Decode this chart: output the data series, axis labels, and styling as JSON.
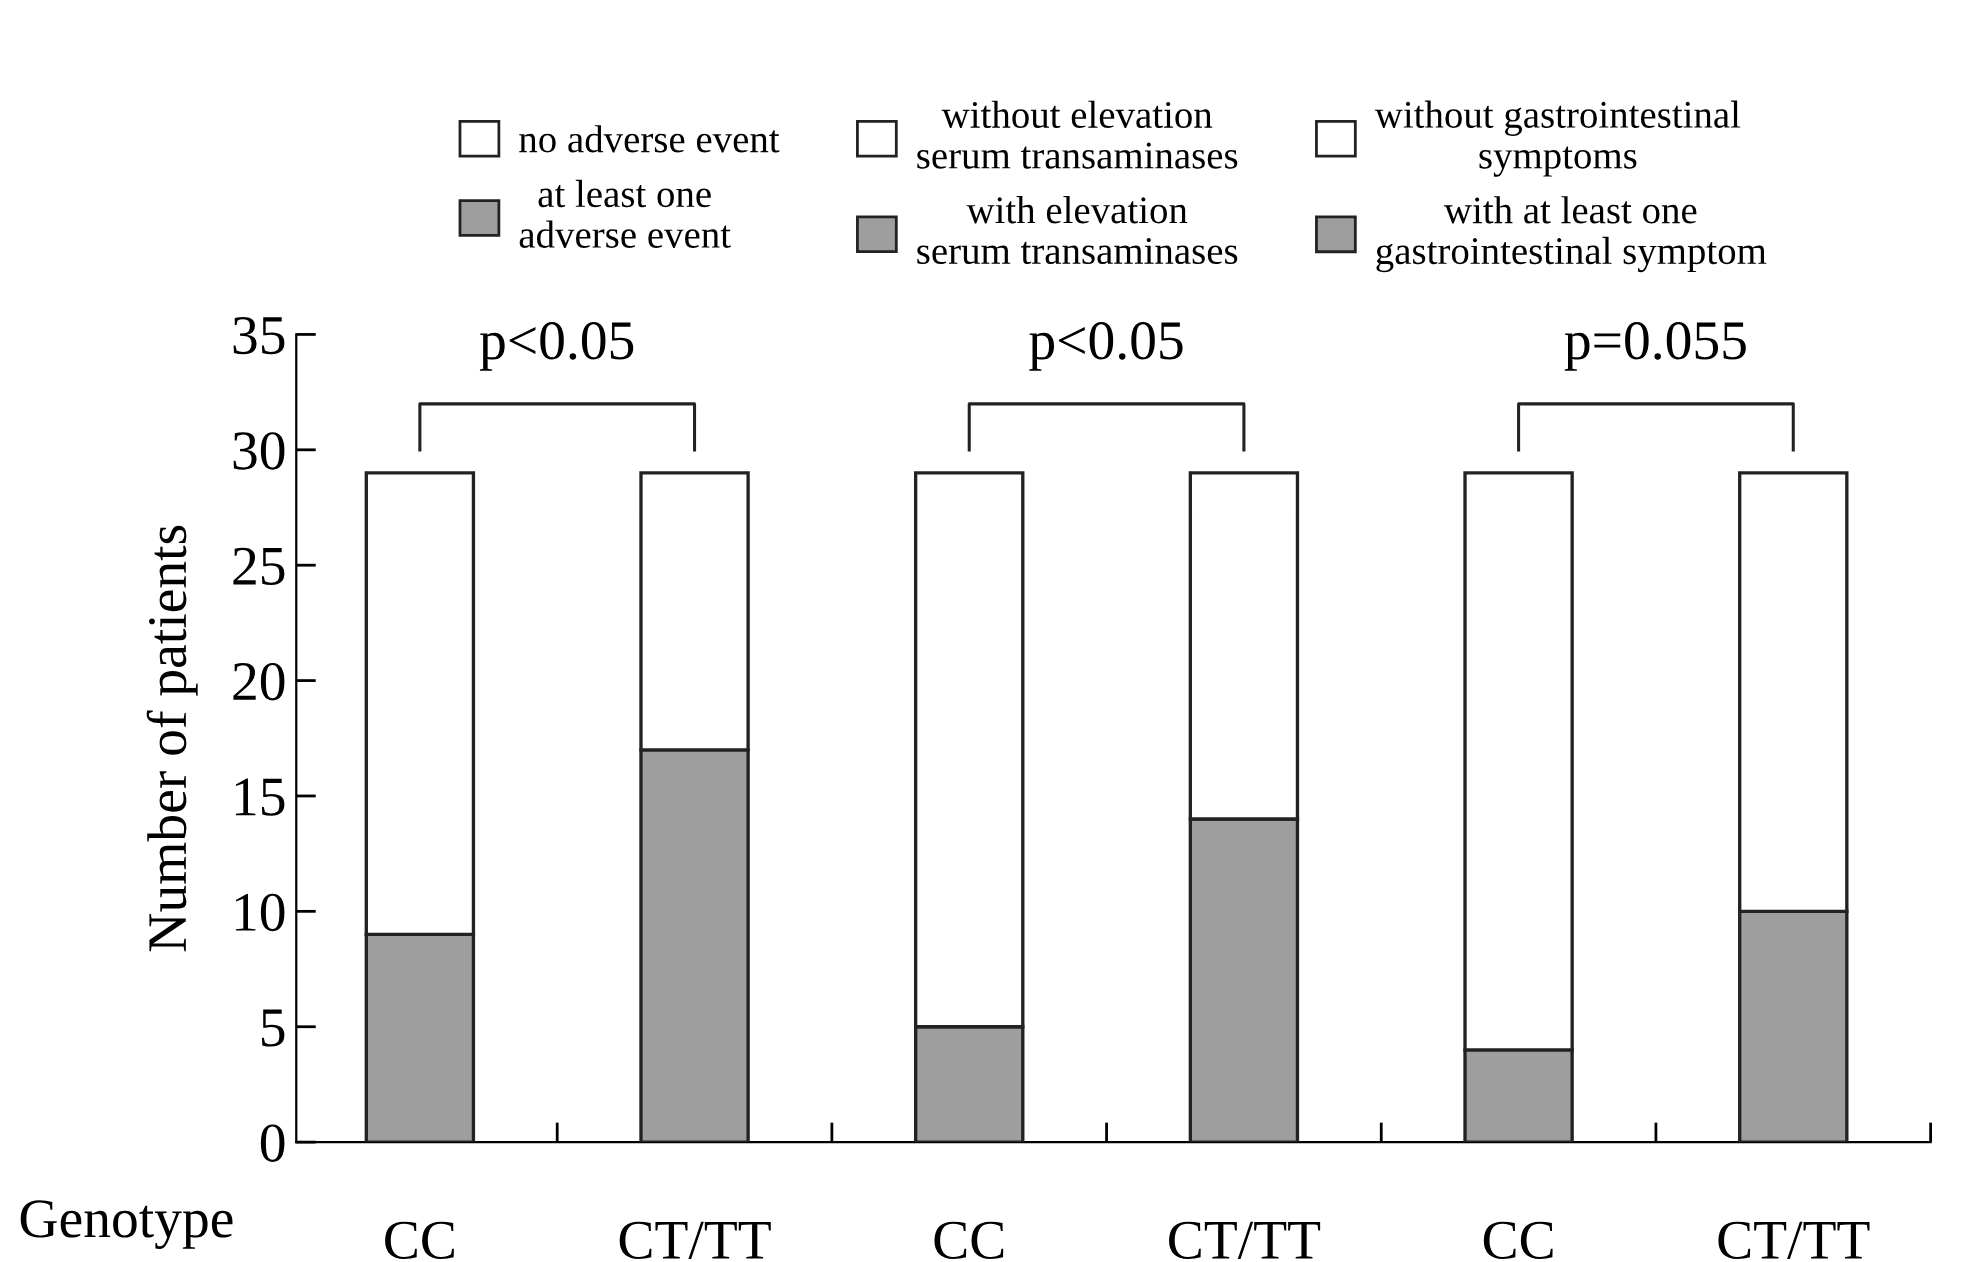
{
  "chart_data": {
    "type": "bar",
    "stacked": true,
    "ylabel": "Number of patients",
    "xlabel": "Genotype",
    "categories": [
      "CC",
      "CT/TT",
      "CC",
      "CT/TT",
      "CC",
      "CT/TT"
    ],
    "series": [
      {
        "name": "at least one adverse event",
        "color": "#9e9e9e",
        "values": [
          9,
          17,
          null,
          null,
          null,
          null
        ]
      },
      {
        "name": "no adverse event",
        "color": "#ffffff",
        "values": [
          20,
          12,
          null,
          null,
          null,
          null
        ]
      },
      {
        "name": "with elevation serum transaminases",
        "color": "#9e9e9e",
        "values": [
          null,
          null,
          5,
          14,
          null,
          null
        ]
      },
      {
        "name": "without elevation serum transaminases",
        "color": "#ffffff",
        "values": [
          null,
          null,
          24,
          15,
          null,
          null
        ]
      },
      {
        "name": "with at least one gastrointestinal symptom",
        "color": "#9e9e9e",
        "values": [
          null,
          null,
          null,
          null,
          4,
          10
        ]
      },
      {
        "name": "without gastrointestinal symptoms",
        "color": "#ffffff",
        "values": [
          null,
          null,
          null,
          null,
          25,
          19
        ]
      }
    ],
    "annotations": [
      "p<0.05",
      "p<0.05",
      "p=0.055"
    ],
    "ylim": [
      0,
      35
    ],
    "yticks": [
      0,
      5,
      10,
      15,
      20,
      25,
      30,
      35
    ],
    "grid": false,
    "legend": "top"
  }
}
